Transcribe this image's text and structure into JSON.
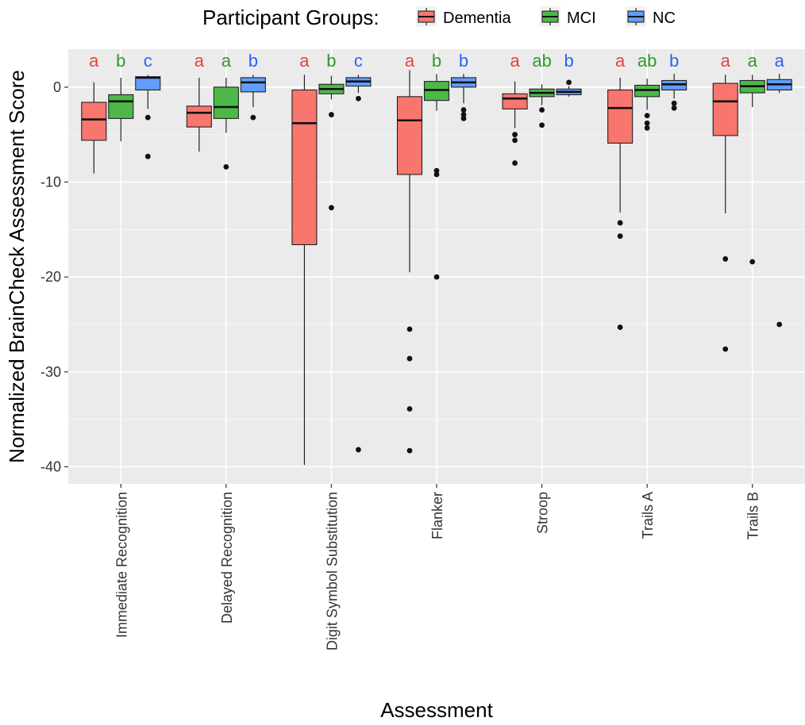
{
  "chart_data": {
    "type": "boxplot",
    "xlabel": "Assessment",
    "ylabel": "Normalized BrainCheck Assessment Score",
    "ylim": [
      -41.8,
      4.0
    ],
    "yticks": [
      0,
      -10,
      -20,
      -30,
      -40
    ],
    "ytick_labels": [
      "0",
      "-10",
      "-20",
      "-30",
      "-40"
    ],
    "grid": true,
    "legend": {
      "title": "Participant Groups:",
      "position": "top",
      "items": [
        "Dementia",
        "MCI",
        "NC"
      ]
    },
    "colors": {
      "Dementia": "#F8766D",
      "MCI": "#4DB848",
      "NC": "#619CFF"
    },
    "sig_colors": {
      "Dementia": "#E8413C",
      "MCI": "#2E9B2A",
      "NC": "#2B63F0"
    },
    "categories": [
      "Immediate Recognition",
      "Delayed Recognition",
      "Digit Symbol Substitution",
      "Flanker",
      "Stroop",
      "Trails A",
      "Trails B"
    ],
    "series": [
      {
        "name": "Dementia",
        "boxes": [
          {
            "min": -9.1,
            "q1": -5.6,
            "median": -3.4,
            "q3": -1.6,
            "max": 0.5,
            "outliers": []
          },
          {
            "min": -6.8,
            "q1": -4.2,
            "median": -2.7,
            "q3": -2.0,
            "max": 1.0,
            "outliers": []
          },
          {
            "min": -39.8,
            "q1": -16.6,
            "median": -3.8,
            "q3": -0.3,
            "max": 1.3,
            "outliers": []
          },
          {
            "min": -19.5,
            "q1": -9.2,
            "median": -3.5,
            "q3": -1.0,
            "max": 1.8,
            "outliers": [
              -25.5,
              -28.6,
              -33.9,
              -38.3
            ]
          },
          {
            "min": -4.3,
            "q1": -2.3,
            "median": -1.2,
            "q3": -0.7,
            "max": 0.6,
            "outliers": [
              -5.0,
              -5.6,
              -8.0
            ]
          },
          {
            "min": -13.2,
            "q1": -5.9,
            "median": -2.2,
            "q3": -0.3,
            "max": 1.0,
            "outliers": [
              -14.3,
              -15.7,
              -25.3
            ]
          },
          {
            "min": -13.3,
            "q1": -5.1,
            "median": -1.5,
            "q3": 0.4,
            "max": 1.3,
            "outliers": [
              -18.1,
              -27.6
            ]
          }
        ]
      },
      {
        "name": "MCI",
        "boxes": [
          {
            "min": -5.7,
            "q1": -3.3,
            "median": -1.5,
            "q3": -0.8,
            "max": 1.0,
            "outliers": []
          },
          {
            "min": -4.8,
            "q1": -3.3,
            "median": -2.1,
            "q3": 0.0,
            "max": 1.0,
            "outliers": [
              -8.4
            ]
          },
          {
            "min": -1.3,
            "q1": -0.7,
            "median": -0.2,
            "q3": 0.3,
            "max": 1.2,
            "outliers": [
              -2.9,
              -12.7
            ]
          },
          {
            "min": -2.5,
            "q1": -1.4,
            "median": -0.3,
            "q3": 0.6,
            "max": 1.4,
            "outliers": [
              -8.8,
              -9.2,
              -20.0
            ]
          },
          {
            "min": -1.9,
            "q1": -1.0,
            "median": -0.6,
            "q3": -0.2,
            "max": 0.3,
            "outliers": [
              -2.4,
              -4.0
            ]
          },
          {
            "min": -2.4,
            "q1": -1.0,
            "median": -0.3,
            "q3": 0.2,
            "max": 0.9,
            "outliers": [
              -3.0,
              -3.8,
              -4.3
            ]
          },
          {
            "min": -2.1,
            "q1": -0.6,
            "median": 0.1,
            "q3": 0.7,
            "max": 1.3,
            "outliers": [
              -18.4
            ]
          }
        ]
      },
      {
        "name": "NC",
        "boxes": [
          {
            "min": -2.3,
            "q1": -0.3,
            "median": 1.0,
            "q3": 1.1,
            "max": 1.3,
            "outliers": [
              -3.2,
              -7.3
            ]
          },
          {
            "min": -2.1,
            "q1": -0.5,
            "median": 0.5,
            "q3": 1.0,
            "max": 1.3,
            "outliers": [
              -3.2
            ]
          },
          {
            "min": -0.6,
            "q1": 0.1,
            "median": 0.6,
            "q3": 1.0,
            "max": 1.3,
            "outliers": [
              -1.2,
              -38.2
            ]
          },
          {
            "min": -1.7,
            "q1": 0.0,
            "median": 0.5,
            "q3": 1.0,
            "max": 1.4,
            "outliers": [
              -2.4,
              -2.9,
              -3.3
            ]
          },
          {
            "min": -1.0,
            "q1": -0.8,
            "median": -0.5,
            "q3": -0.2,
            "max": 0.1,
            "outliers": [
              0.5
            ]
          },
          {
            "min": -1.2,
            "q1": -0.3,
            "median": 0.3,
            "q3": 0.7,
            "max": 1.4,
            "outliers": [
              -1.7,
              -2.2
            ]
          },
          {
            "min": -0.6,
            "q1": -0.3,
            "median": 0.3,
            "q3": 0.8,
            "max": 1.4,
            "outliers": [
              -25.0
            ]
          }
        ]
      }
    ],
    "annotations": [
      [
        "a",
        "b",
        "c"
      ],
      [
        "a",
        "a",
        "b"
      ],
      [
        "a",
        "b",
        "c"
      ],
      [
        "a",
        "b",
        "b"
      ],
      [
        "a",
        "ab",
        "b"
      ],
      [
        "a",
        "ab",
        "b"
      ],
      [
        "a",
        "a",
        "a"
      ]
    ]
  }
}
